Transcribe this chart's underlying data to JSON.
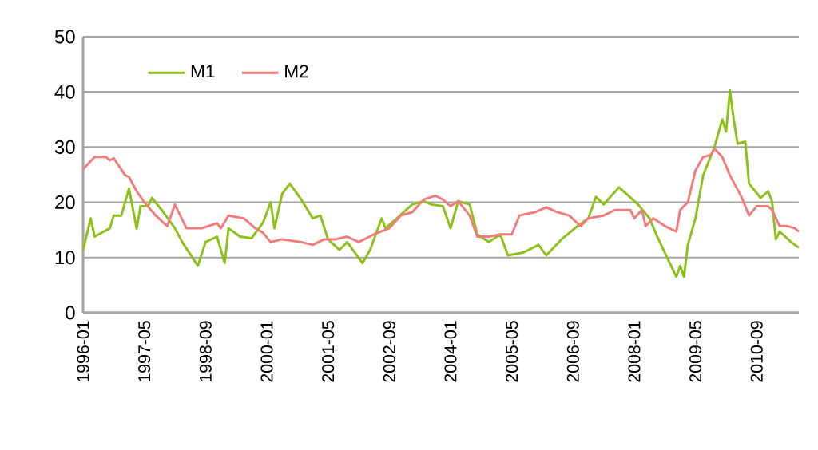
{
  "chart_data": {
    "type": "line",
    "xlim": [
      "1996-01",
      "2011-08"
    ],
    "ylim": [
      0,
      50
    ],
    "yticks": [
      0,
      10,
      20,
      30,
      40,
      50
    ],
    "xticks": [
      "1996-01",
      "1997-05",
      "1998-09",
      "2000-01",
      "2001-05",
      "2002-09",
      "2004-01",
      "2005-05",
      "2006-09",
      "2008-01",
      "2009-05",
      "2010-09"
    ],
    "grid": "y",
    "legend": "top left",
    "marker": "none",
    "line_style": "solid",
    "series": [
      {
        "name": "M1",
        "color": "#8cc11a",
        "x": [
          "1996-01",
          "1996-03",
          "1996-04",
          "1996-08",
          "1996-09",
          "1996-11",
          "1997-01",
          "1997-03",
          "1997-04",
          "1997-06",
          "1997-07",
          "1997-10",
          "1998-01",
          "1998-03",
          "1998-07",
          "1998-09",
          "1998-12",
          "1999-02",
          "1999-03",
          "1999-06",
          "1999-09",
          "1999-12",
          "2000-02",
          "2000-03",
          "2000-05",
          "2000-07",
          "2000-10",
          "2001-01",
          "2001-03",
          "2001-05",
          "2001-08",
          "2001-10",
          "2002-02",
          "2002-04",
          "2002-07",
          "2002-08",
          "2002-11",
          "2003-03",
          "2003-06",
          "2003-08",
          "2003-11",
          "2004-01",
          "2004-03",
          "2004-06",
          "2004-08",
          "2004-11",
          "2005-02",
          "2005-04",
          "2005-08",
          "2005-12",
          "2006-02",
          "2006-06",
          "2006-10",
          "2007-01",
          "2007-03",
          "2007-05",
          "2007-09",
          "2007-11",
          "2008-02",
          "2008-05",
          "2008-07",
          "2008-10",
          "2008-12",
          "2009-01",
          "2009-02",
          "2009-03",
          "2009-05",
          "2009-07",
          "2009-10",
          "2009-12",
          "2010-01",
          "2010-02",
          "2010-03",
          "2010-04",
          "2010-06",
          "2010-07",
          "2010-10",
          "2010-12",
          "2011-01",
          "2011-02",
          "2011-03",
          "2011-06",
          "2011-08"
        ],
        "values": [
          11.4,
          17.1,
          13.8,
          15.3,
          17.6,
          17.6,
          22.5,
          15.2,
          19.3,
          19.3,
          20.8,
          18.2,
          15.3,
          12.7,
          8.5,
          12.8,
          13.8,
          9,
          15.3,
          13.8,
          13.5,
          16.3,
          20,
          15.3,
          21.5,
          23.4,
          20.5,
          17.1,
          17.6,
          13.3,
          11.4,
          12.8,
          9,
          11.4,
          17.1,
          15.3,
          17.1,
          19.6,
          20.2,
          19.6,
          19.3,
          15.3,
          20.2,
          19.6,
          14.2,
          12.8,
          14.2,
          10.4,
          10.9,
          12.3,
          10.4,
          13.3,
          15.6,
          17.1,
          21,
          19.6,
          22.7,
          21.5,
          19.6,
          17.1,
          13.8,
          9.4,
          6.5,
          8.5,
          6.5,
          12.3,
          17.1,
          24.9,
          30.1,
          35,
          32.8,
          40.3,
          35,
          30.6,
          31,
          23.4,
          20.8,
          22,
          20.2,
          13.3,
          14.7,
          12.8,
          11.8
        ]
      },
      {
        "name": "M2",
        "color": "#f47b7b",
        "x": [
          "1996-01",
          "1996-04",
          "1996-07",
          "1996-08",
          "1996-09",
          "1996-12",
          "1997-01",
          "1997-03",
          "1997-05",
          "1997-08",
          "1997-11",
          "1998-01",
          "1998-04",
          "1998-08",
          "1998-12",
          "1999-01",
          "1999-03",
          "1999-07",
          "1999-10",
          "1999-12",
          "2000-02",
          "2000-05",
          "2000-10",
          "2001-01",
          "2001-04",
          "2001-07",
          "2001-10",
          "2002-01",
          "2002-05",
          "2002-09",
          "2002-12",
          "2003-03",
          "2003-06",
          "2003-09",
          "2003-11",
          "2004-01",
          "2004-03",
          "2004-06",
          "2004-08",
          "2004-11",
          "2005-02",
          "2005-05",
          "2005-07",
          "2005-11",
          "2006-02",
          "2006-05",
          "2006-08",
          "2006-11",
          "2007-01",
          "2007-05",
          "2007-08",
          "2007-12",
          "2008-01",
          "2008-03",
          "2008-04",
          "2008-06",
          "2008-09",
          "2008-12",
          "2009-01",
          "2009-03",
          "2009-05",
          "2009-07",
          "2009-09",
          "2009-10",
          "2009-12",
          "2010-02",
          "2010-05",
          "2010-07",
          "2010-09",
          "2010-12",
          "2011-01",
          "2011-03",
          "2011-05",
          "2011-07",
          "2011-08"
        ],
        "values": [
          26,
          28.2,
          28.2,
          27.6,
          28,
          24.9,
          24.6,
          22,
          20,
          17.6,
          15.7,
          19.6,
          15.3,
          15.3,
          16.2,
          15.3,
          17.6,
          17.1,
          15.3,
          14.5,
          12.8,
          13.3,
          12.8,
          12.3,
          13.3,
          13.3,
          13.8,
          12.8,
          14.2,
          15.3,
          17.6,
          18.2,
          20.5,
          21.2,
          20.5,
          19.3,
          20.2,
          17.6,
          13.8,
          13.8,
          14.2,
          14.2,
          17.6,
          18.2,
          19.1,
          18.2,
          17.6,
          15.7,
          17.1,
          17.6,
          18.6,
          18.6,
          17.1,
          18.6,
          15.7,
          17.1,
          15.7,
          14.7,
          18.6,
          20,
          25.8,
          28.2,
          28.6,
          29.7,
          28.2,
          24.9,
          21,
          17.6,
          19.3,
          19.3,
          18.6,
          15.7,
          15.7,
          15.3,
          14.7
        ]
      }
    ]
  }
}
